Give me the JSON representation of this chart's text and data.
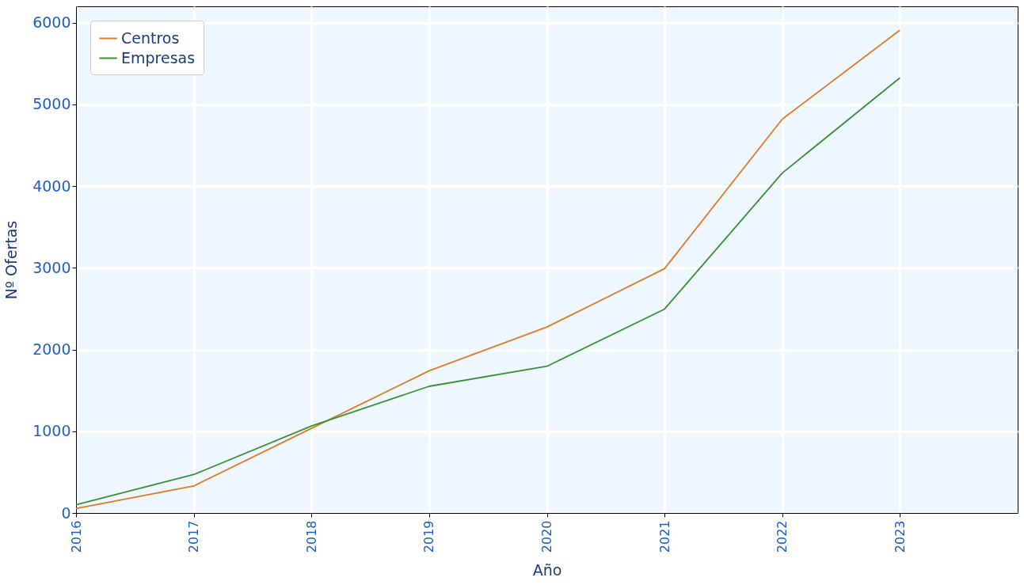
{
  "chart_data": {
    "type": "line",
    "xlabel": "Año",
    "ylabel": "Nº Ofertas",
    "x": [
      2016,
      2017,
      2018,
      2019,
      2020,
      2021,
      2022,
      2023
    ],
    "series": [
      {
        "name": "Centros",
        "color": "#e07b24",
        "values": [
          55,
          330,
          1035,
          1740,
          2275,
          2990,
          4820,
          5910
        ]
      },
      {
        "name": "Empresas",
        "color": "#3a9135",
        "values": [
          100,
          470,
          1065,
          1550,
          1795,
          2495,
          4160,
          5325
        ]
      }
    ],
    "xlim": [
      2016,
      2024
    ],
    "xticks": [
      2016,
      2017,
      2018,
      2019,
      2020,
      2021,
      2022,
      2023
    ],
    "ylim": [
      0,
      6200
    ],
    "yticks": [
      0,
      1000,
      2000,
      3000,
      4000,
      5000,
      6000
    ],
    "grid": true,
    "legend": "top left",
    "marker": "none",
    "line_style": "solid"
  }
}
